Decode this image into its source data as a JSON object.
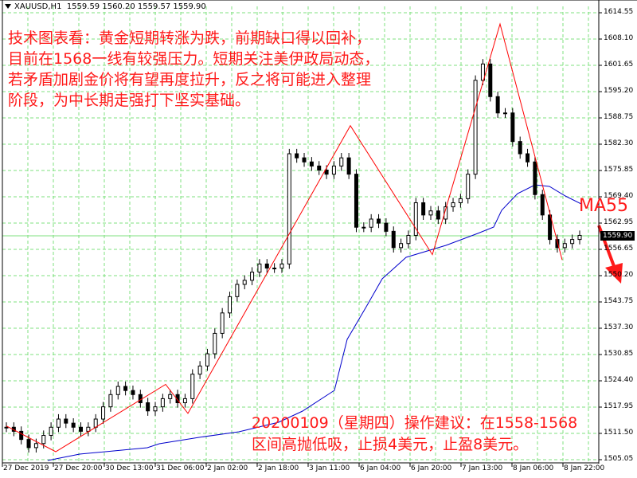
{
  "header": {
    "symbol": "XAUUSD,H1",
    "ohlc": "1559.59 1560.20 1559.57 1559.90"
  },
  "notes": {
    "analysis": [
      "技术图表看：黄金短期转涨为跌，前期缺口得以回补，",
      "目前在1568一线有较强压力。短期关注美伊政局动态，",
      "若矛盾加剧金价将有望再度拉升，反之将可能进入整理",
      "阶段，为中长期走强打下坚实基础。"
    ],
    "suggestion": [
      "20200109（星期四）操作建议：在1558-1568",
      "区间高抛低吸，止损4美元，止盈8美元。"
    ]
  },
  "ma_label": "MA55",
  "current_price": "1559.90",
  "colors": {
    "grid": "#7fe07f",
    "candle": "#000000",
    "zigzag": "#ff0000",
    "ma": "#0000cc",
    "annotation": "#ff1a1a",
    "price_line": "#7fe07f"
  },
  "chart_data": {
    "type": "candlestick",
    "title": "XAUUSD,H1",
    "y_ticks": [
      "1614.55",
      "1608.10",
      "1601.65",
      "1595.20",
      "1588.75",
      "1582.30",
      "1575.85",
      "1569.40",
      "1562.95",
      "1556.65",
      "1550.20",
      "1543.75",
      "1537.30",
      "1530.85",
      "1524.40",
      "1517.95",
      "1511.50",
      "1505.05"
    ],
    "x_ticks": [
      "27 Dec 2019",
      "27 Dec 20:00",
      "30 Dec 13:00",
      "31 Dec 06:00",
      "2 Jan 02:00",
      "2 Jan 18:00",
      "3 Jan 11:00",
      "6 Jan 04:00",
      "6 Jan 20:00",
      "7 Jan 13:00",
      "8 Jan 06:00",
      "8 Jan 22:00"
    ],
    "ylim": [
      1505.05,
      1614.55
    ],
    "grid": true,
    "zigzag": [
      [
        8,
        1513.3
      ],
      [
        70,
        1507.0
      ],
      [
        208,
        1523.5
      ],
      [
        236,
        1516.4
      ],
      [
        440,
        1586.9
      ],
      [
        543,
        1555.3
      ],
      [
        628,
        1611.8
      ],
      [
        706,
        1554.0
      ]
    ],
    "zigzag_note": "x pixel / price points of red zigzag indicator",
    "ma55_label": "MA55",
    "current_price": 1559.9,
    "closes_approx": [
      1513,
      1512,
      1510,
      1508,
      1509,
      1511,
      1513,
      1515,
      1514,
      1513,
      1512,
      1513,
      1515,
      1518,
      1521,
      1523,
      1522,
      1521,
      1519,
      1517,
      1518,
      1520,
      1521,
      1519,
      1520,
      1526,
      1528,
      1531,
      1536,
      1541,
      1545,
      1548,
      1549,
      1551,
      1553,
      1552,
      1552,
      1553,
      1580,
      1579,
      1578,
      1577,
      1576,
      1575,
      1577,
      1579,
      1575,
      1562,
      1562,
      1564,
      1563,
      1561,
      1557,
      1558,
      1560,
      1568,
      1565,
      1566,
      1564,
      1567,
      1568,
      1569,
      1575,
      1598,
      1602,
      1594,
      1590,
      1590,
      1583,
      1580,
      1578,
      1570,
      1565,
      1559,
      1557,
      1558,
      1559,
      1560
    ]
  }
}
